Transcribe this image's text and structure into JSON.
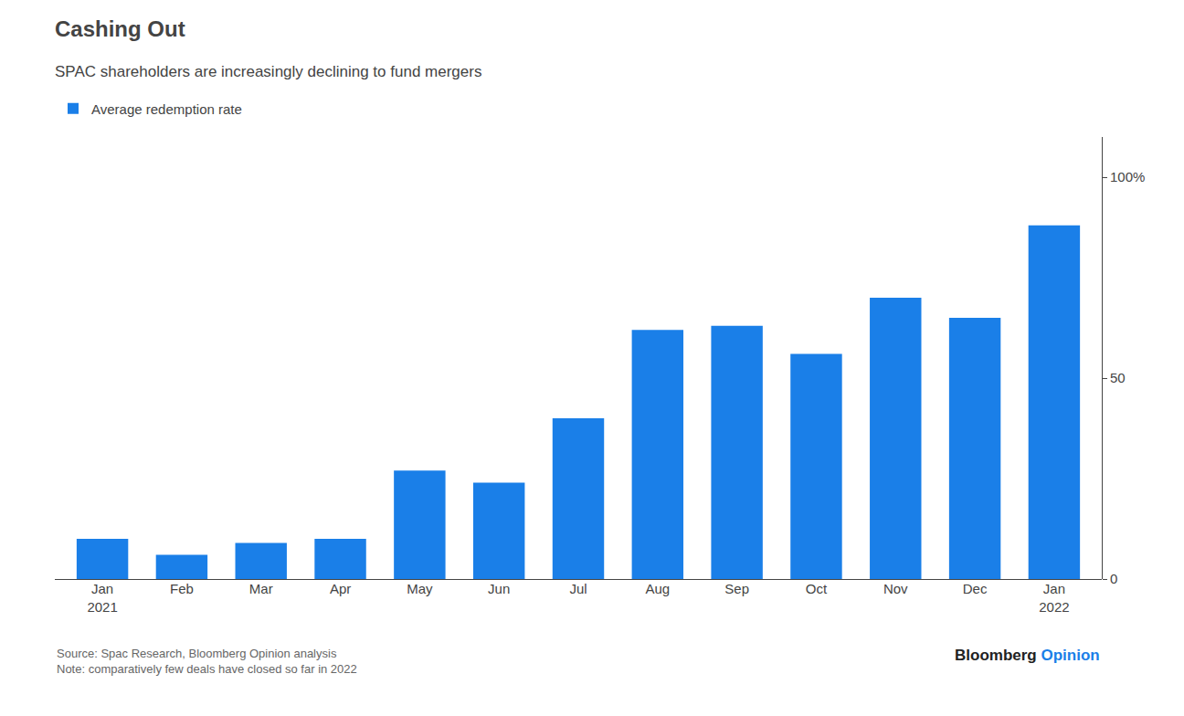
{
  "chart_data": {
    "type": "bar",
    "title": "Cashing Out",
    "subtitle": "SPAC shareholders are increasingly declining to fund mergers",
    "categories": [
      "Jan\n2021",
      "Feb",
      "Mar",
      "Apr",
      "May",
      "Jun",
      "Jul",
      "Aug",
      "Sep",
      "Oct",
      "Nov",
      "Dec",
      "Jan\n2022"
    ],
    "series": [
      {
        "name": "Average redemption rate",
        "color": "#1a7fe8",
        "values": [
          10,
          6,
          9,
          10,
          27,
          24,
          40,
          62,
          63,
          56,
          70,
          65,
          88
        ]
      }
    ],
    "ylim": [
      0,
      110
    ],
    "yticks": [
      0,
      50,
      {
        "value": 100,
        "label": "100%"
      }
    ],
    "grid": false,
    "legend": "upper left",
    "annotations": [
      "Source: Spac Research, Bloomberg Opinion analysis\nNote: comparatively few deals have closed so far in 2022",
      "Bloomberg",
      "Opinion"
    ]
  }
}
